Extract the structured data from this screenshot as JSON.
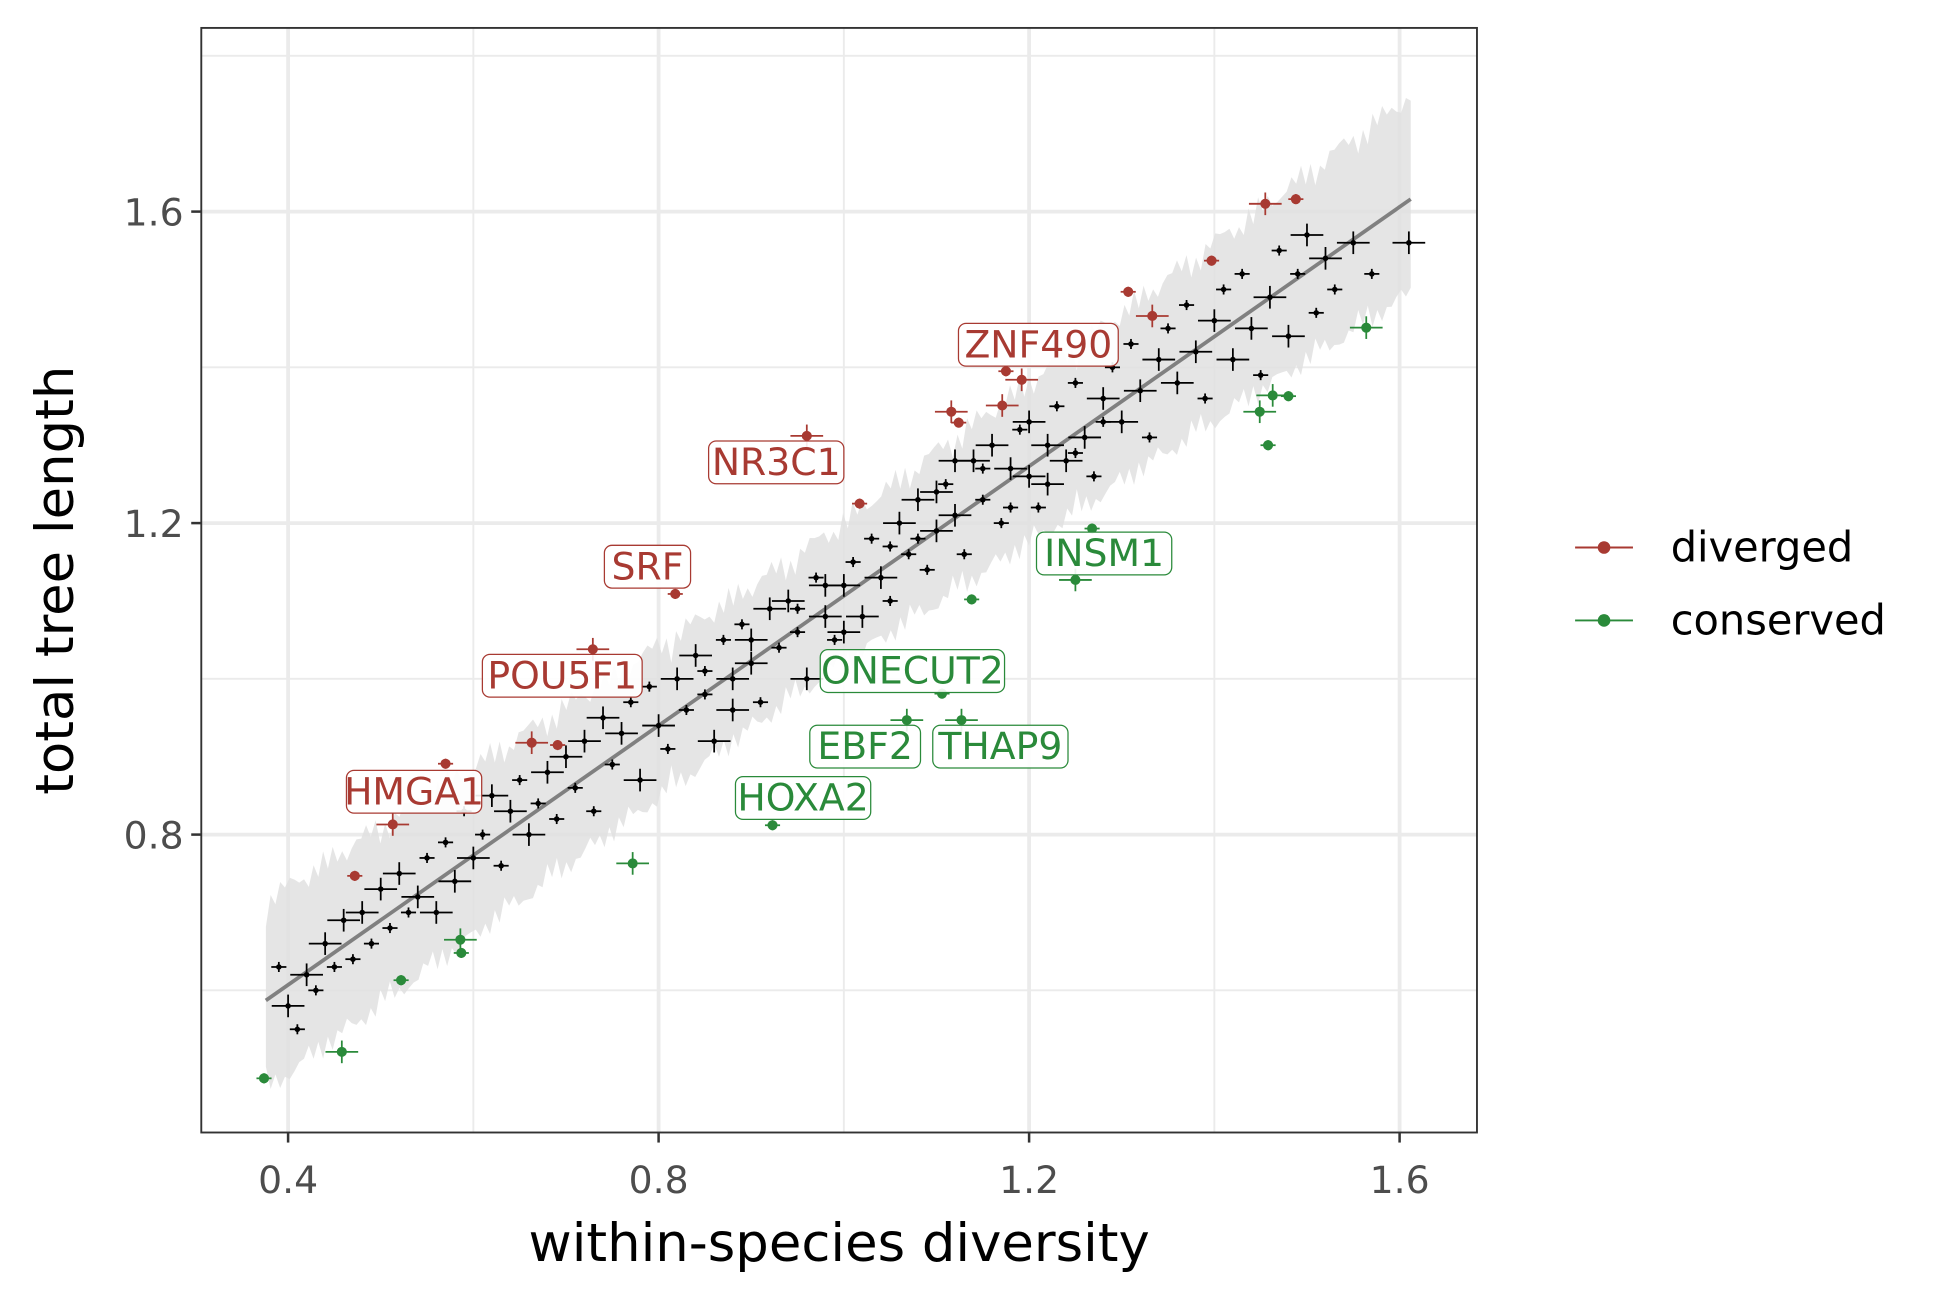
{
  "chart_data": {
    "type": "scatter",
    "title": "",
    "xlabel": "within-species diversity",
    "ylabel": "total tree length",
    "xlim": [
      0.31,
      1.67
    ],
    "ylim": [
      0.43,
      1.81
    ],
    "xticks": [
      "0.4",
      "0.8",
      "1.2",
      "1.6"
    ],
    "yticks": [
      "0.8",
      "1.2",
      "1.6"
    ],
    "grid": true,
    "legend_position": "right",
    "colors": {
      "diverged": "#a83a32",
      "conserved": "#2a8a3a",
      "other": "#000000",
      "fit": "#808080",
      "ribbon": "#e0e0e0"
    },
    "fit_line": {
      "x": [
        0.376,
        1.612
      ],
      "y": [
        0.587,
        1.616
      ]
    },
    "series": [
      {
        "name": "diverged",
        "points": [
          [
            0.472,
            0.747
          ],
          [
            0.513,
            0.813,
            "HMGA1"
          ],
          [
            0.57,
            0.891
          ],
          [
            0.663,
            0.918
          ],
          [
            0.691,
            0.915
          ],
          [
            0.729,
            1.038,
            "POU5F1"
          ],
          [
            0.818,
            1.109,
            "SRF"
          ],
          [
            0.96,
            1.312,
            "NR3C1"
          ],
          [
            1.017,
            1.225
          ],
          [
            1.116,
            1.343
          ],
          [
            1.124,
            1.329
          ],
          [
            1.171,
            1.351
          ],
          [
            1.175,
            1.395,
            "ZNF490"
          ],
          [
            1.192,
            1.384
          ],
          [
            1.307,
            1.497
          ],
          [
            1.333,
            1.466
          ],
          [
            1.397,
            1.537
          ],
          [
            1.455,
            1.61
          ],
          [
            1.488,
            1.616
          ]
        ]
      },
      {
        "name": "conserved",
        "points": [
          [
            0.374,
            0.487
          ],
          [
            0.458,
            0.521
          ],
          [
            0.522,
            0.613
          ],
          [
            0.586,
            0.665
          ],
          [
            0.587,
            0.648
          ],
          [
            0.772,
            0.763
          ],
          [
            0.923,
            0.812,
            "HOXA2"
          ],
          [
            1.068,
            0.947,
            "EBF2"
          ],
          [
            1.106,
            0.981,
            "ONECUT2"
          ],
          [
            1.127,
            0.947,
            "THAP9"
          ],
          [
            1.138,
            1.102
          ],
          [
            1.25,
            1.127,
            "INSM1"
          ],
          [
            1.268,
            1.193
          ],
          [
            1.449,
            1.343
          ],
          [
            1.458,
            1.3
          ],
          [
            1.463,
            1.364
          ],
          [
            1.48,
            1.363
          ],
          [
            1.564,
            1.451
          ]
        ]
      },
      {
        "points": [
          [
            0.39,
            0.63
          ],
          [
            0.4,
            0.58
          ],
          [
            0.41,
            0.55
          ],
          [
            0.42,
            0.62
          ],
          [
            0.43,
            0.6
          ],
          [
            0.44,
            0.66
          ],
          [
            0.45,
            0.63
          ],
          [
            0.46,
            0.69
          ],
          [
            0.47,
            0.64
          ],
          [
            0.48,
            0.7
          ],
          [
            0.49,
            0.66
          ],
          [
            0.5,
            0.73
          ],
          [
            0.51,
            0.68
          ],
          [
            0.52,
            0.75
          ],
          [
            0.53,
            0.7
          ],
          [
            0.54,
            0.72
          ],
          [
            0.55,
            0.77
          ],
          [
            0.56,
            0.7
          ],
          [
            0.57,
            0.79
          ],
          [
            0.58,
            0.74
          ],
          [
            0.59,
            0.83
          ],
          [
            0.6,
            0.77
          ],
          [
            0.61,
            0.8
          ],
          [
            0.62,
            0.85
          ],
          [
            0.63,
            0.76
          ],
          [
            0.64,
            0.83
          ],
          [
            0.65,
            0.87
          ],
          [
            0.66,
            0.8
          ],
          [
            0.67,
            0.84
          ],
          [
            0.68,
            0.88
          ],
          [
            0.69,
            0.82
          ],
          [
            0.7,
            0.9
          ],
          [
            0.71,
            0.86
          ],
          [
            0.72,
            0.92
          ],
          [
            0.73,
            0.83
          ],
          [
            0.74,
            0.95
          ],
          [
            0.75,
            0.89
          ],
          [
            0.76,
            0.93
          ],
          [
            0.77,
            0.97
          ],
          [
            0.78,
            0.87
          ],
          [
            0.79,
            0.99
          ],
          [
            0.8,
            0.94
          ],
          [
            0.81,
            0.91
          ],
          [
            0.82,
            1.0
          ],
          [
            0.83,
            0.96
          ],
          [
            0.84,
            1.03
          ],
          [
            0.85,
            0.98
          ],
          [
            0.86,
            0.92
          ],
          [
            0.87,
            1.05
          ],
          [
            0.88,
            1.0
          ],
          [
            0.89,
            1.07
          ],
          [
            0.9,
            1.02
          ],
          [
            0.91,
            0.97
          ],
          [
            0.92,
            1.09
          ],
          [
            0.93,
            1.04
          ],
          [
            0.94,
            1.1
          ],
          [
            0.95,
            1.06
          ],
          [
            0.96,
            1.0
          ],
          [
            0.97,
            1.13
          ],
          [
            0.98,
            1.08
          ],
          [
            0.99,
            1.05
          ],
          [
            1.0,
            1.12
          ],
          [
            1.01,
            1.15
          ],
          [
            1.02,
            1.08
          ],
          [
            1.03,
            1.18
          ],
          [
            1.04,
            1.13
          ],
          [
            1.05,
            1.1
          ],
          [
            1.06,
            1.2
          ],
          [
            1.07,
            1.16
          ],
          [
            1.08,
            1.23
          ],
          [
            1.09,
            1.14
          ],
          [
            1.1,
            1.19
          ],
          [
            1.11,
            1.25
          ],
          [
            1.12,
            1.21
          ],
          [
            1.13,
            1.16
          ],
          [
            1.14,
            1.28
          ],
          [
            1.15,
            1.23
          ],
          [
            1.16,
            1.3
          ],
          [
            1.17,
            1.2
          ],
          [
            1.18,
            1.27
          ],
          [
            1.19,
            1.32
          ],
          [
            1.2,
            1.26
          ],
          [
            1.21,
            1.22
          ],
          [
            1.22,
            1.3
          ],
          [
            1.23,
            1.35
          ],
          [
            1.24,
            1.28
          ],
          [
            1.25,
            1.38
          ],
          [
            1.26,
            1.31
          ],
          [
            1.27,
            1.26
          ],
          [
            1.28,
            1.36
          ],
          [
            1.29,
            1.4
          ],
          [
            1.3,
            1.33
          ],
          [
            1.31,
            1.43
          ],
          [
            1.32,
            1.37
          ],
          [
            1.33,
            1.31
          ],
          [
            1.34,
            1.41
          ],
          [
            1.35,
            1.45
          ],
          [
            1.36,
            1.38
          ],
          [
            1.37,
            1.48
          ],
          [
            1.38,
            1.42
          ],
          [
            1.39,
            1.36
          ],
          [
            1.4,
            1.46
          ],
          [
            1.41,
            1.5
          ],
          [
            1.42,
            1.41
          ],
          [
            1.43,
            1.52
          ],
          [
            1.44,
            1.45
          ],
          [
            1.45,
            1.39
          ],
          [
            1.46,
            1.49
          ],
          [
            1.47,
            1.55
          ],
          [
            1.48,
            1.44
          ],
          [
            1.49,
            1.52
          ],
          [
            1.5,
            1.57
          ],
          [
            1.51,
            1.47
          ],
          [
            1.52,
            1.54
          ],
          [
            1.53,
            1.5
          ],
          [
            1.55,
            1.56
          ],
          [
            1.57,
            1.52
          ],
          [
            1.61,
            1.56
          ],
          [
            0.95,
            1.09
          ],
          [
            1.0,
            1.06
          ],
          [
            1.05,
            1.17
          ],
          [
            1.1,
            1.24
          ],
          [
            1.15,
            1.27
          ],
          [
            1.2,
            1.33
          ],
          [
            1.25,
            1.29
          ],
          [
            0.9,
            1.05
          ],
          [
            0.85,
            1.01
          ],
          [
            1.12,
            1.28
          ],
          [
            1.18,
            1.22
          ],
          [
            0.98,
            1.12
          ],
          [
            1.08,
            1.18
          ],
          [
            1.22,
            1.25
          ],
          [
            1.28,
            1.33
          ],
          [
            0.88,
            0.96
          ]
        ]
      }
    ],
    "legend": [
      "diverged",
      "conserved"
    ]
  }
}
